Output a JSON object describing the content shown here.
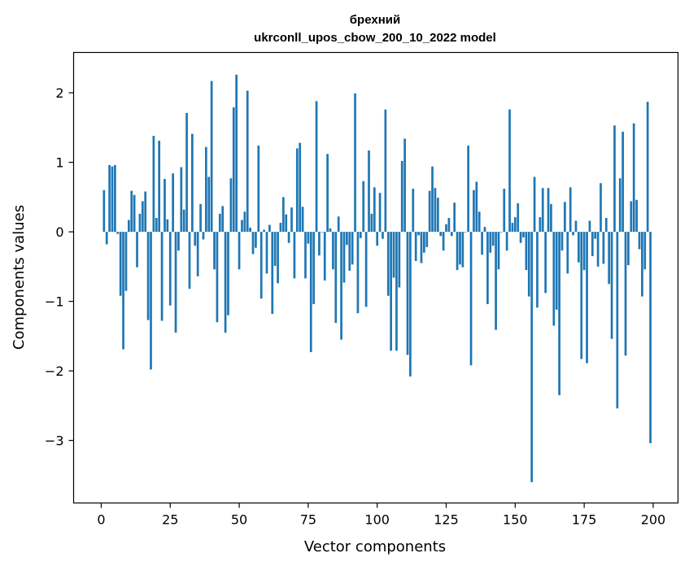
{
  "chart_data": {
    "type": "bar",
    "title_line1": "брехний",
    "title_line2": "ukrconll_upos_cbow_200_10_2022 model",
    "xlabel": "Vector components",
    "ylabel": "Components values",
    "xlim": [
      -10,
      209
    ],
    "ylim": [
      -3.9,
      2.58
    ],
    "xticks": [
      0,
      25,
      50,
      75,
      100,
      125,
      150,
      175,
      200
    ],
    "yticks": [
      -3,
      -2,
      -1,
      0,
      1,
      2
    ],
    "ytick_labels": [
      "−3",
      "−2",
      "−1",
      "0",
      "1",
      "2"
    ],
    "bar_color": "#1f77b4",
    "grid": false,
    "legend": "none",
    "values": [
      0.6,
      -0.18,
      0.96,
      0.94,
      0.96,
      -0.03,
      -0.92,
      -1.69,
      -0.85,
      0.17,
      0.59,
      0.53,
      -0.51,
      0.26,
      0.44,
      0.58,
      -1.27,
      -1.98,
      1.38,
      0.2,
      1.31,
      -1.28,
      0.76,
      0.18,
      -1.06,
      0.84,
      -1.45,
      -0.27,
      0.93,
      0.32,
      1.71,
      -0.82,
      1.41,
      -0.2,
      -0.64,
      0.4,
      -0.11,
      1.22,
      0.79,
      2.17,
      -0.54,
      -1.3,
      0.26,
      0.37,
      -1.45,
      -1.2,
      0.77,
      1.79,
      2.26,
      -0.54,
      0.17,
      0.29,
      2.03,
      0.06,
      -0.32,
      -0.23,
      1.24,
      -0.96,
      0.03,
      -0.6,
      0.1,
      -1.18,
      -0.49,
      -0.74,
      0.13,
      0.5,
      0.25,
      -0.16,
      0.35,
      -0.67,
      1.2,
      1.28,
      0.36,
      -0.67,
      -0.17,
      -1.73,
      -1.04,
      1.88,
      -0.34,
      0.0,
      -0.7,
      1.12,
      0.05,
      -0.54,
      -1.31,
      0.22,
      -1.55,
      -0.73,
      -0.19,
      -0.56,
      -0.47,
      1.99,
      -1.17,
      -0.09,
      0.73,
      -1.08,
      1.17,
      0.26,
      0.64,
      -0.2,
      0.56,
      -0.1,
      1.76,
      -0.92,
      -1.71,
      -0.66,
      -1.71,
      -0.8,
      1.02,
      1.34,
      -1.77,
      -2.08,
      0.62,
      -0.42,
      -0.05,
      -0.45,
      -0.3,
      -0.22,
      0.59,
      0.94,
      0.63,
      0.49,
      -0.06,
      -0.27,
      0.11,
      0.2,
      -0.06,
      0.42,
      -0.55,
      -0.47,
      -0.51,
      0.0,
      1.24,
      -1.92,
      0.6,
      0.72,
      0.29,
      -0.33,
      0.07,
      -1.04,
      -0.3,
      -0.2,
      -1.41,
      -0.54,
      0.0,
      0.62,
      -0.27,
      1.76,
      0.13,
      0.21,
      0.41,
      -0.16,
      -0.08,
      -0.55,
      -0.93,
      -3.6,
      0.79,
      -1.09,
      0.21,
      0.63,
      -0.88,
      0.63,
      0.4,
      -1.35,
      -1.12,
      -2.35,
      -0.27,
      0.43,
      -0.6,
      0.64,
      -0.05,
      0.16,
      -0.44,
      -1.83,
      -0.55,
      -1.89,
      0.16,
      -0.35,
      -0.1,
      -0.5,
      0.7,
      -0.46,
      0.2,
      -0.75,
      -1.54,
      1.53,
      -2.54,
      0.77,
      1.44,
      -1.78,
      -0.48,
      0.44,
      1.56,
      0.46,
      -0.25,
      -0.93,
      -0.54,
      1.87,
      -3.04
    ]
  }
}
